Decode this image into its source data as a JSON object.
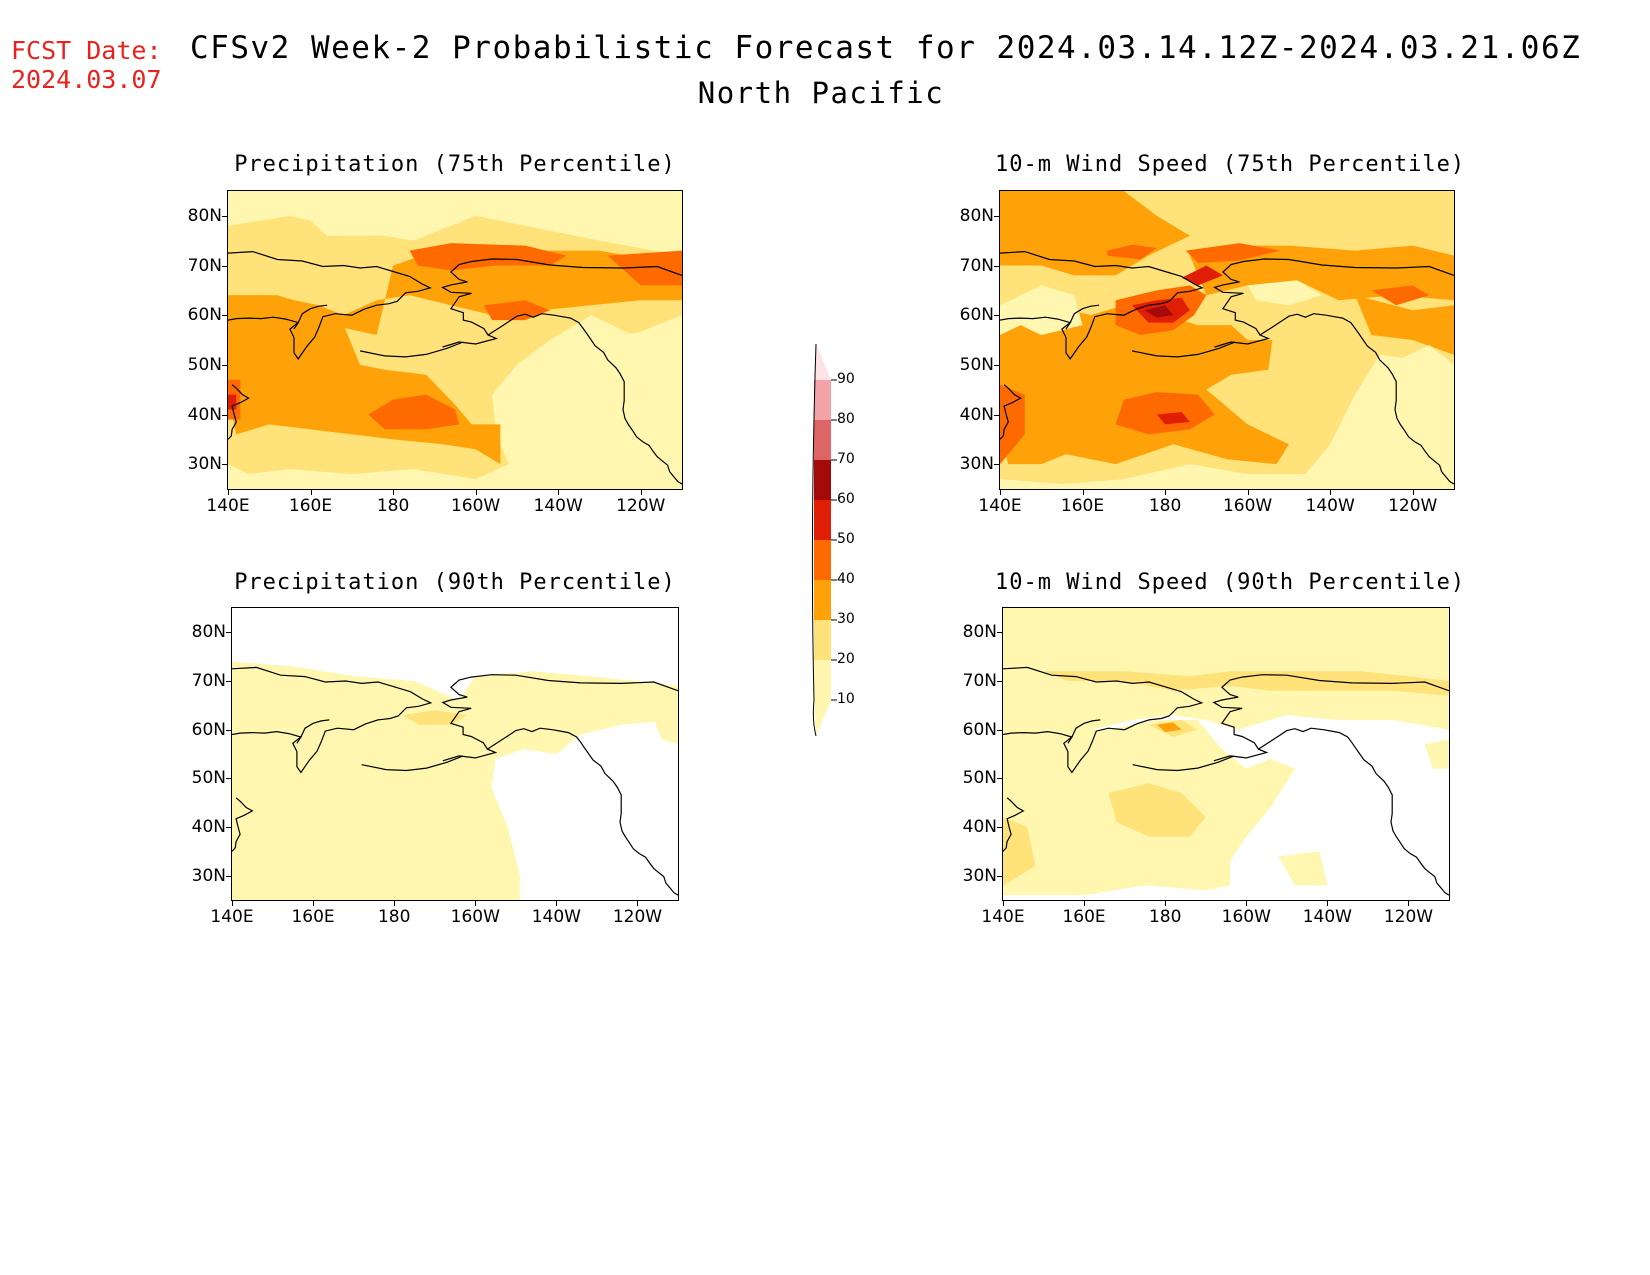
{
  "header": {
    "fcst_label": "FCST Date:",
    "fcst_date": "2024.03.07",
    "title": "CFSv2 Week-2 Probabilistic Forecast for 2024.03.14.12Z-2024.03.21.06Z",
    "region": "North Pacific"
  },
  "axes": {
    "lat_ticks": [
      "80N",
      "70N",
      "60N",
      "50N",
      "40N",
      "30N"
    ],
    "lon_ticks": [
      "140E",
      "160E",
      "180",
      "160W",
      "140W",
      "120W"
    ],
    "lat_range": [
      25,
      85
    ],
    "lon_range_east": [
      140,
      250
    ]
  },
  "colorbar": {
    "levels": [
      "10",
      "20",
      "30",
      "40",
      "50",
      "60",
      "70",
      "80",
      "90"
    ],
    "colors": [
      "#fff7b0",
      "#ffe27a",
      "#ffa20a",
      "#ff6a00",
      "#e01e05",
      "#a50a0a",
      "#dd6565",
      "#f3a2a8",
      "#fde2e6"
    ]
  },
  "panels": [
    {
      "id": "precip-75",
      "title": "Precipitation (75th Percentile)",
      "intensity": "high"
    },
    {
      "id": "wind-75",
      "title": "10-m Wind Speed (75th Percentile)",
      "intensity": "high"
    },
    {
      "id": "precip-90",
      "title": "Precipitation (90th Percentile)",
      "intensity": "low"
    },
    {
      "id": "wind-90",
      "title": "10-m Wind Speed (90th Percentile)",
      "intensity": "low"
    }
  ]
}
